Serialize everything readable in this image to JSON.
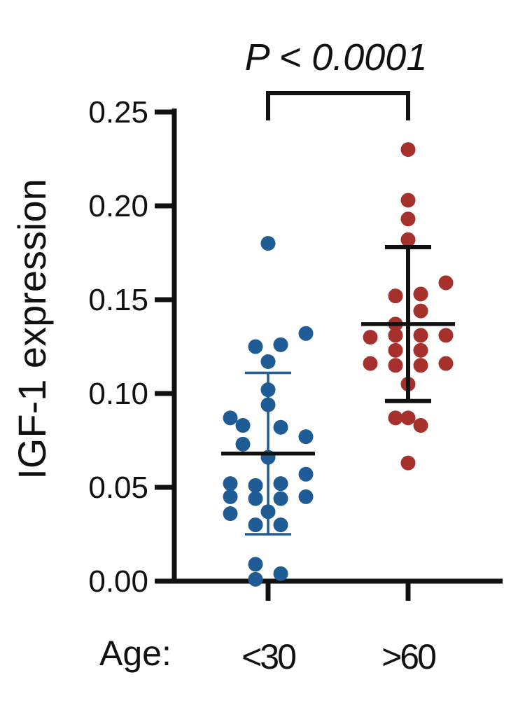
{
  "chart_data": {
    "type": "scatter",
    "ylabel": "IGF-1 expression",
    "xlabel": "Age:",
    "categories": [
      "<30",
      ">60"
    ],
    "ylim": [
      0,
      0.25
    ],
    "yticks": [
      "0.00",
      "0.05",
      "0.10",
      "0.15",
      "0.20",
      "0.25"
    ],
    "significance": {
      "label": "P < 0.0001",
      "between": [
        "<30",
        ">60"
      ]
    },
    "grid": false,
    "series": [
      {
        "category": "<30",
        "color": "#1f5b94",
        "mean": 0.068,
        "sd_low": 0.025,
        "sd_high": 0.111,
        "points": [
          {
            "value": 0.18,
            "col": 0
          },
          {
            "value": 0.132,
            "col": 3
          },
          {
            "value": 0.125,
            "col": -1
          },
          {
            "value": 0.126,
            "col": 1
          },
          {
            "value": 0.117,
            "col": 0
          },
          {
            "value": 0.102,
            "col": 0
          },
          {
            "value": 0.094,
            "col": 0
          },
          {
            "value": 0.087,
            "col": -3
          },
          {
            "value": 0.083,
            "col": -2
          },
          {
            "value": 0.082,
            "col": 1
          },
          {
            "value": 0.077,
            "col": 3
          },
          {
            "value": 0.073,
            "col": -2
          },
          {
            "value": 0.066,
            "col": 0
          },
          {
            "value": 0.057,
            "col": 3
          },
          {
            "value": 0.052,
            "col": -3
          },
          {
            "value": 0.051,
            "col": -1
          },
          {
            "value": 0.052,
            "col": 1
          },
          {
            "value": 0.045,
            "col": -3
          },
          {
            "value": 0.044,
            "col": -1
          },
          {
            "value": 0.044,
            "col": 1
          },
          {
            "value": 0.045,
            "col": 3
          },
          {
            "value": 0.036,
            "col": -3
          },
          {
            "value": 0.037,
            "col": 0
          },
          {
            "value": 0.03,
            "col": -1
          },
          {
            "value": 0.03,
            "col": 1
          },
          {
            "value": 0.009,
            "col": -1
          },
          {
            "value": 0.004,
            "col": 1
          },
          {
            "value": 0.001,
            "col": -1
          }
        ]
      },
      {
        "category": ">60",
        "color": "#a6302c",
        "mean": 0.137,
        "sd_low": 0.096,
        "sd_high": 0.178,
        "points": [
          {
            "value": 0.23,
            "col": 0
          },
          {
            "value": 0.203,
            "col": 0
          },
          {
            "value": 0.193,
            "col": 0
          },
          {
            "value": 0.182,
            "col": 0
          },
          {
            "value": 0.159,
            "col": 3
          },
          {
            "value": 0.153,
            "col": 1
          },
          {
            "value": 0.152,
            "col": -1
          },
          {
            "value": 0.144,
            "col": 1
          },
          {
            "value": 0.137,
            "col": -1
          },
          {
            "value": 0.131,
            "col": 3
          },
          {
            "value": 0.13,
            "col": -3
          },
          {
            "value": 0.131,
            "col": -1
          },
          {
            "value": 0.131,
            "col": 1
          },
          {
            "value": 0.123,
            "col": -1
          },
          {
            "value": 0.123,
            "col": 1
          },
          {
            "value": 0.116,
            "col": -3
          },
          {
            "value": 0.116,
            "col": 3
          },
          {
            "value": 0.115,
            "col": -1
          },
          {
            "value": 0.115,
            "col": 1
          },
          {
            "value": 0.105,
            "col": 0
          },
          {
            "value": 0.087,
            "col": -1
          },
          {
            "value": 0.087,
            "col": 0
          },
          {
            "value": 0.083,
            "col": 1
          },
          {
            "value": 0.063,
            "col": 0
          }
        ]
      }
    ]
  }
}
